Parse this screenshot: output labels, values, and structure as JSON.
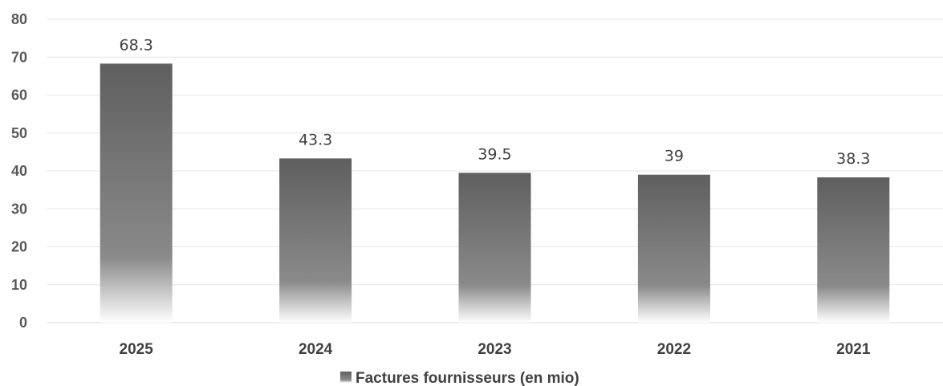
{
  "chart_data": {
    "type": "bar",
    "categories": [
      "2025",
      "2024",
      "2023",
      "2022",
      "2021"
    ],
    "series": [
      {
        "name": "Factures fournisseurs (en mio)",
        "values": [
          68.3,
          43.3,
          39.5,
          39,
          38.3
        ],
        "data_labels": [
          "68.3",
          "43.3",
          "39.5",
          "39",
          "38.3"
        ]
      }
    ],
    "ylim": [
      0,
      80
    ],
    "yticks": [
      0,
      10,
      20,
      30,
      40,
      50,
      60,
      70,
      80
    ],
    "grid": true,
    "legend_position": "bottom",
    "bar_color_top": "#5f5f5f",
    "bar_color_mid": "#8a8a8a",
    "bar_color_bottom": "#ffffff"
  }
}
